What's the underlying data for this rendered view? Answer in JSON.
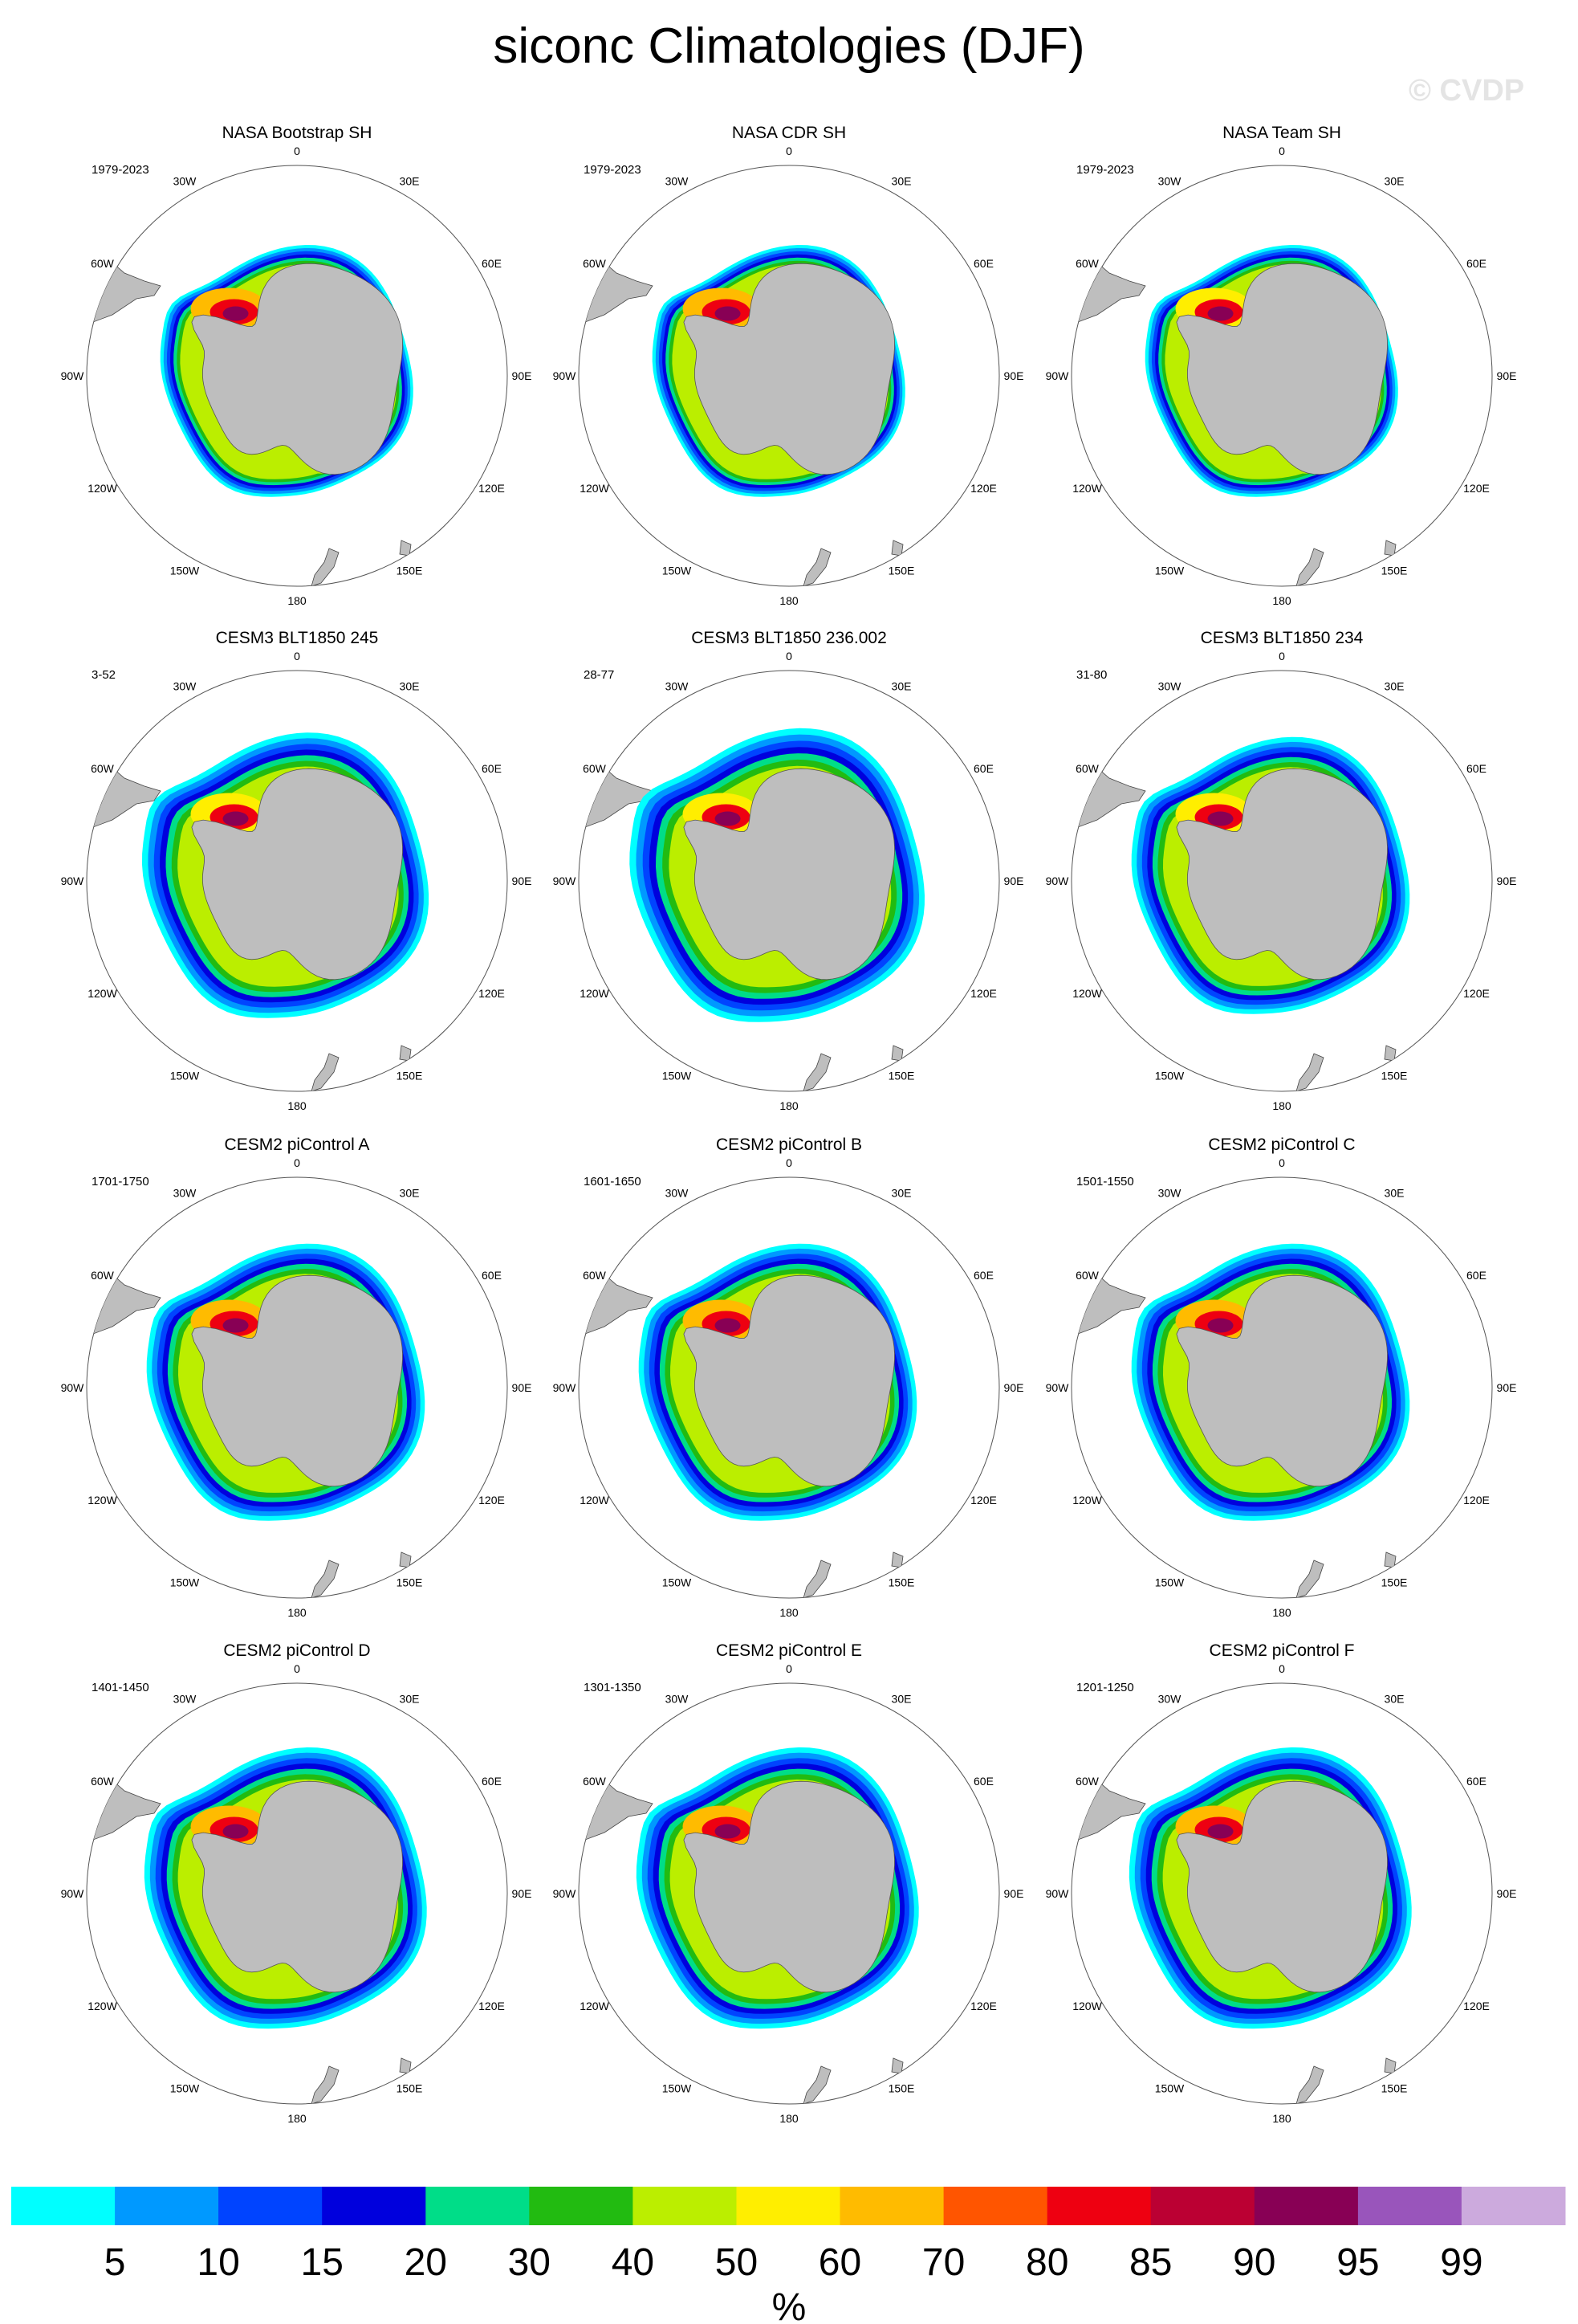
{
  "figure": {
    "title": "siconc Climatologies (DJF)",
    "watermark": "© CVDP"
  },
  "chart_data": {
    "type": "heatmap",
    "projection": "south-polar-stereographic",
    "variable": "siconc",
    "units": "%",
    "longitude_labels": [
      "0",
      "30E",
      "60E",
      "90E",
      "120E",
      "150E",
      "180",
      "150W",
      "120W",
      "90W",
      "60W",
      "30W"
    ],
    "panels": [
      {
        "title": "NASA Bootstrap SH",
        "period": "1979-2023",
        "ice_extent": 0.6,
        "ice_core": 60
      },
      {
        "title": "NASA CDR SH",
        "period": "1979-2023",
        "ice_extent": 0.6,
        "ice_core": 60
      },
      {
        "title": "NASA Team SH",
        "period": "1979-2023",
        "ice_extent": 0.6,
        "ice_core": 55
      },
      {
        "title": "CESM3 BLT1850 245",
        "period": "3-52",
        "ice_extent": 0.68,
        "ice_core": 50
      },
      {
        "title": "CESM3 BLT1850 236.002",
        "period": "28-77",
        "ice_extent": 0.7,
        "ice_core": 50
      },
      {
        "title": "CESM3 BLT1850 234",
        "period": "31-80",
        "ice_extent": 0.66,
        "ice_core": 50
      },
      {
        "title": "CESM2 piControl A",
        "period": "1701-1750",
        "ice_extent": 0.66,
        "ice_core": 60
      },
      {
        "title": "CESM2 piControl B",
        "period": "1601-1650",
        "ice_extent": 0.66,
        "ice_core": 60
      },
      {
        "title": "CESM2 piControl C",
        "period": "1501-1550",
        "ice_extent": 0.66,
        "ice_core": 60
      },
      {
        "title": "CESM2 piControl D",
        "period": "1401-1450",
        "ice_extent": 0.67,
        "ice_core": 60
      },
      {
        "title": "CESM2 piControl E",
        "period": "1301-1350",
        "ice_extent": 0.67,
        "ice_core": 60
      },
      {
        "title": "CESM2 piControl F",
        "period": "1201-1250",
        "ice_extent": 0.67,
        "ice_core": 60
      }
    ],
    "colorbar": {
      "levels": [
        5,
        10,
        15,
        20,
        30,
        40,
        50,
        60,
        70,
        80,
        85,
        90,
        95,
        99
      ],
      "colors": [
        "#00ffff",
        "#0099ff",
        "#0044ff",
        "#0000dd",
        "#00dd88",
        "#22bb11",
        "#bbee00",
        "#ffee00",
        "#ffbb00",
        "#ff5500",
        "#ee0011",
        "#bb0033",
        "#880055",
        "#9955bb",
        "#ccaadd"
      ],
      "label": "%"
    },
    "land_color": "#bebebe"
  }
}
